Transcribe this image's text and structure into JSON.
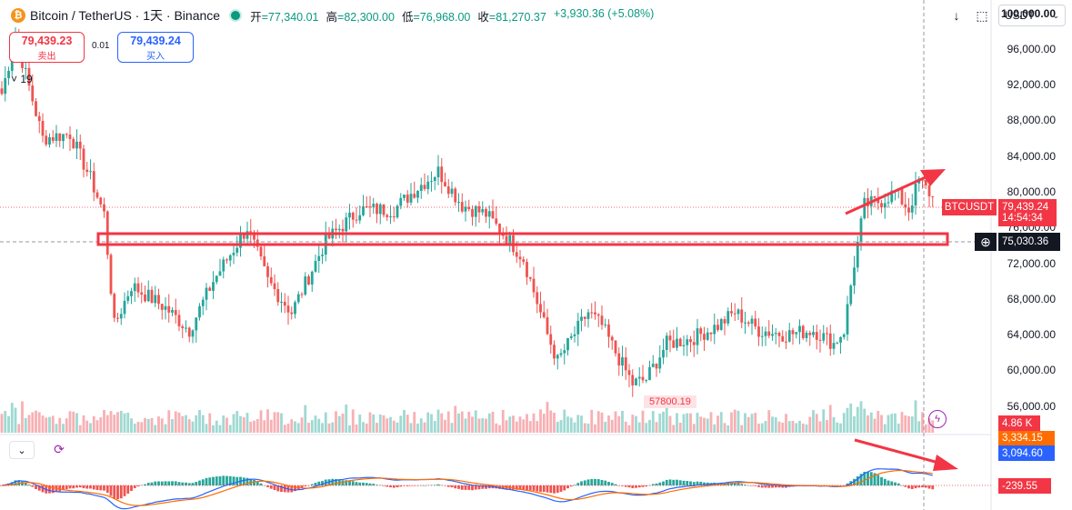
{
  "header": {
    "coin_glyph": "₿",
    "symbol": "Bitcoin / TetherUS · 1天 · Binance",
    "ohlc": [
      {
        "key": "开",
        "value": "=77,340.01"
      },
      {
        "key": "高",
        "value": "=82,300.00"
      },
      {
        "key": "低",
        "value": "=76,968.00"
      },
      {
        "key": "收",
        "value": "=81,270.37"
      },
      {
        "key": "",
        "value": "+3,930.36 (+5.08%)"
      }
    ],
    "currency": "USDT"
  },
  "trade": {
    "sell_price": "79,439.23",
    "sell_label": "卖出",
    "spread": "0.01",
    "buy_price": "79,439.24",
    "buy_label": "买入"
  },
  "collapse_count": "19",
  "price_labels": {
    "symbol_tag": "BTCUSDT",
    "last_price": "79,439.24",
    "countdown": "14:54:34",
    "cursor_price": "75,030.36",
    "min_label": "57800.19"
  },
  "indicator_labels": {
    "volume": "4.86 K",
    "macd_signal": "3,334.15",
    "macd_line": "3,094.60",
    "histogram": "-239.55"
  },
  "colors": {
    "up": "#26a69a",
    "down": "#ef5350",
    "macd_blue": "#2962ff",
    "macd_orange": "#ff6d00",
    "annotation_red": "#f23645"
  },
  "chart_data": {
    "type": "candlestick",
    "title": "Bitcoin / TetherUS · 1天 · Binance",
    "y_ticks": [
      "100,000.00",
      "96,000.00",
      "92,000.00",
      "88,000.00",
      "84,000.00",
      "80,000.00",
      "76,000.00",
      "72,000.00",
      "68,000.00",
      "64,000.00",
      "60,000.00",
      "56,000.00"
    ],
    "ylim": [
      53000,
      101500
    ],
    "key_points": [
      {
        "i": 0,
        "price": 91000
      },
      {
        "i": 4,
        "price": 97500
      },
      {
        "i": 12,
        "price": 86000
      },
      {
        "i": 20,
        "price": 86500
      },
      {
        "i": 26,
        "price": 81500
      },
      {
        "i": 30,
        "price": 77500
      },
      {
        "i": 33,
        "price": 65000
      },
      {
        "i": 38,
        "price": 69500
      },
      {
        "i": 48,
        "price": 67000
      },
      {
        "i": 55,
        "price": 64500
      },
      {
        "i": 62,
        "price": 70000
      },
      {
        "i": 72,
        "price": 76000
      },
      {
        "i": 78,
        "price": 70000
      },
      {
        "i": 85,
        "price": 66500
      },
      {
        "i": 95,
        "price": 74500
      },
      {
        "i": 105,
        "price": 78000
      },
      {
        "i": 115,
        "price": 78000
      },
      {
        "i": 122,
        "price": 80500
      },
      {
        "i": 128,
        "price": 82300
      },
      {
        "i": 135,
        "price": 78500
      },
      {
        "i": 142,
        "price": 77500
      },
      {
        "i": 150,
        "price": 74000
      },
      {
        "i": 153,
        "price": 72500
      },
      {
        "i": 160,
        "price": 64000
      },
      {
        "i": 163,
        "price": 61000
      },
      {
        "i": 167,
        "price": 63500
      },
      {
        "i": 172,
        "price": 66500
      },
      {
        "i": 176,
        "price": 65000
      },
      {
        "i": 180,
        "price": 62000
      },
      {
        "i": 185,
        "price": 58500
      },
      {
        "i": 189,
        "price": 59000
      },
      {
        "i": 195,
        "price": 63000
      },
      {
        "i": 202,
        "price": 63500
      },
      {
        "i": 210,
        "price": 65000
      },
      {
        "i": 215,
        "price": 66500
      },
      {
        "i": 222,
        "price": 64500
      },
      {
        "i": 230,
        "price": 64000
      },
      {
        "i": 238,
        "price": 64500
      },
      {
        "i": 244,
        "price": 63000
      },
      {
        "i": 247,
        "price": 64500
      },
      {
        "i": 250,
        "price": 72000
      },
      {
        "i": 253,
        "price": 78500
      },
      {
        "i": 258,
        "price": 79000
      },
      {
        "i": 262,
        "price": 80000
      },
      {
        "i": 266,
        "price": 78000
      },
      {
        "i": 269,
        "price": 81270
      },
      {
        "i": 273,
        "price": 79439
      }
    ]
  }
}
